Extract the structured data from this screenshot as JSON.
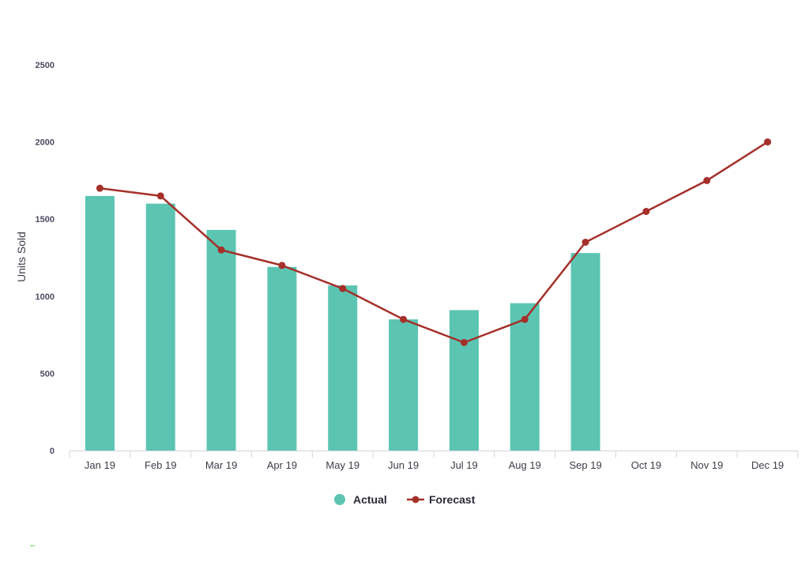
{
  "chart_data": {
    "type": "bar",
    "title": "",
    "xlabel": "",
    "ylabel": "Units Sold",
    "ylim": [
      0,
      2500
    ],
    "y_ticks": [
      0,
      500,
      1000,
      1500,
      2000,
      2500
    ],
    "grid": false,
    "legend_position": "bottom-center",
    "categories": [
      "Jan 19",
      "Feb 19",
      "Mar 19",
      "Apr 19",
      "May 19",
      "Jun 19",
      "Jul 19",
      "Aug 19",
      "Sep 19",
      "Oct 19",
      "Nov 19",
      "Dec 19"
    ],
    "series": [
      {
        "name": "Actual",
        "type": "bar",
        "color": "#5bc5b2",
        "values": [
          1650,
          1600,
          1430,
          1190,
          1070,
          850,
          910,
          955,
          1280,
          null,
          null,
          null
        ]
      },
      {
        "name": "Forecast",
        "type": "line",
        "color": "#a5302a",
        "values": [
          1700,
          1650,
          1300,
          1200,
          1050,
          850,
          700,
          850,
          1350,
          1550,
          1750,
          2000
        ]
      }
    ]
  }
}
